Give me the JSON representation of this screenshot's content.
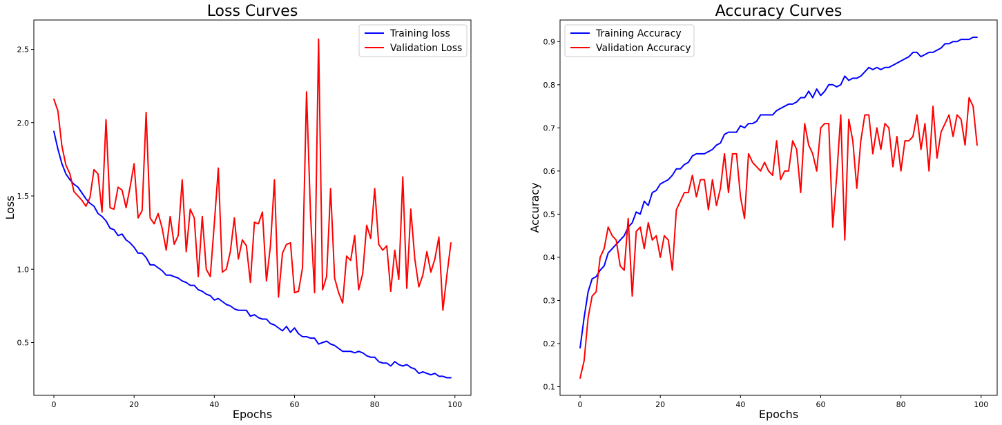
{
  "chart_data": [
    {
      "type": "line",
      "title": "Loss Curves",
      "xlabel": "Epochs",
      "ylabel": "Loss",
      "xlim": [
        -5,
        104
      ],
      "ylim": [
        0.14,
        2.7
      ],
      "xticks": [
        0,
        20,
        40,
        60,
        80,
        100
      ],
      "xtick_labels": [
        "0",
        "20",
        "40",
        "60",
        "80",
        "100"
      ],
      "yticks": [
        0.5,
        1.0,
        1.5,
        2.0,
        2.5
      ],
      "ytick_labels": [
        "0.5",
        "1.0",
        "1.5",
        "2.0",
        "2.5"
      ],
      "grid": false,
      "legend_position": "top-right",
      "series": [
        {
          "name": "Training loss",
          "color": "#0000ff",
          "values": [
            1.94,
            1.82,
            1.72,
            1.65,
            1.61,
            1.58,
            1.56,
            1.52,
            1.48,
            1.45,
            1.43,
            1.38,
            1.36,
            1.33,
            1.28,
            1.27,
            1.23,
            1.24,
            1.2,
            1.18,
            1.15,
            1.11,
            1.11,
            1.08,
            1.03,
            1.03,
            1.01,
            0.99,
            0.96,
            0.96,
            0.95,
            0.94,
            0.92,
            0.91,
            0.89,
            0.89,
            0.86,
            0.85,
            0.83,
            0.82,
            0.79,
            0.8,
            0.78,
            0.76,
            0.75,
            0.73,
            0.72,
            0.72,
            0.72,
            0.68,
            0.69,
            0.67,
            0.66,
            0.66,
            0.63,
            0.62,
            0.6,
            0.58,
            0.61,
            0.57,
            0.6,
            0.56,
            0.54,
            0.54,
            0.53,
            0.53,
            0.49,
            0.5,
            0.51,
            0.49,
            0.48,
            0.46,
            0.44,
            0.44,
            0.44,
            0.43,
            0.44,
            0.43,
            0.41,
            0.4,
            0.4,
            0.37,
            0.36,
            0.36,
            0.34,
            0.37,
            0.35,
            0.34,
            0.35,
            0.33,
            0.32,
            0.29,
            0.3,
            0.29,
            0.28,
            0.29,
            0.27,
            0.27,
            0.26,
            0.26
          ]
        },
        {
          "name": "Validation Loss",
          "color": "#ff0000",
          "values": [
            2.16,
            2.08,
            1.84,
            1.71,
            1.65,
            1.53,
            1.5,
            1.47,
            1.43,
            1.49,
            1.68,
            1.65,
            1.39,
            2.02,
            1.42,
            1.41,
            1.56,
            1.54,
            1.42,
            1.56,
            1.72,
            1.35,
            1.4,
            2.07,
            1.35,
            1.31,
            1.38,
            1.28,
            1.13,
            1.36,
            1.17,
            1.23,
            1.61,
            1.12,
            1.41,
            1.35,
            0.95,
            1.36,
            1.0,
            0.95,
            1.31,
            1.69,
            0.98,
            1.0,
            1.12,
            1.35,
            1.07,
            1.2,
            1.16,
            0.91,
            1.32,
            1.31,
            1.39,
            0.92,
            1.16,
            1.61,
            0.81,
            1.11,
            1.17,
            1.18,
            0.84,
            0.85,
            1.01,
            2.21,
            1.37,
            0.84,
            2.57,
            0.86,
            0.95,
            1.55,
            0.94,
            0.84,
            0.77,
            1.09,
            1.06,
            1.23,
            0.86,
            0.97,
            1.3,
            1.21,
            1.55,
            1.17,
            1.13,
            1.16,
            0.85,
            1.13,
            0.93,
            1.63,
            0.87,
            1.41,
            1.07,
            0.88,
            0.96,
            1.12,
            0.98,
            1.07,
            1.22,
            0.72,
            0.96,
            1.18
          ]
        }
      ]
    },
    {
      "type": "line",
      "title": "Accuracy Curves",
      "xlabel": "Epochs",
      "ylabel": "Accuracy",
      "xlim": [
        -5,
        104
      ],
      "ylim": [
        0.08,
        0.95
      ],
      "xticks": [
        0,
        20,
        40,
        60,
        80,
        100
      ],
      "xtick_labels": [
        "0",
        "20",
        "40",
        "60",
        "80",
        "100"
      ],
      "yticks": [
        0.1,
        0.2,
        0.3,
        0.4,
        0.5,
        0.6,
        0.7,
        0.8,
        0.9
      ],
      "ytick_labels": [
        "0.1",
        "0.2",
        "0.3",
        "0.4",
        "0.5",
        "0.6",
        "0.7",
        "0.8",
        "0.9"
      ],
      "grid": false,
      "legend_position": "top-left",
      "series": [
        {
          "name": "Training Accuracy",
          "color": "#0000ff",
          "values": [
            0.19,
            0.26,
            0.32,
            0.35,
            0.355,
            0.37,
            0.38,
            0.41,
            0.42,
            0.43,
            0.44,
            0.45,
            0.47,
            0.48,
            0.505,
            0.5,
            0.53,
            0.52,
            0.55,
            0.555,
            0.57,
            0.575,
            0.58,
            0.59,
            0.605,
            0.605,
            0.615,
            0.62,
            0.635,
            0.64,
            0.64,
            0.64,
            0.645,
            0.65,
            0.66,
            0.665,
            0.685,
            0.69,
            0.69,
            0.69,
            0.705,
            0.7,
            0.71,
            0.71,
            0.715,
            0.73,
            0.73,
            0.73,
            0.73,
            0.74,
            0.745,
            0.75,
            0.755,
            0.755,
            0.76,
            0.77,
            0.77,
            0.785,
            0.77,
            0.79,
            0.775,
            0.785,
            0.8,
            0.8,
            0.795,
            0.8,
            0.82,
            0.81,
            0.815,
            0.815,
            0.82,
            0.83,
            0.84,
            0.835,
            0.84,
            0.835,
            0.84,
            0.84,
            0.845,
            0.85,
            0.855,
            0.86,
            0.865,
            0.875,
            0.875,
            0.865,
            0.87,
            0.875,
            0.875,
            0.88,
            0.885,
            0.895,
            0.895,
            0.9,
            0.9,
            0.905,
            0.905,
            0.905,
            0.91,
            0.91
          ]
        },
        {
          "name": "Validation Accuracy",
          "color": "#ff0000",
          "values": [
            0.12,
            0.16,
            0.26,
            0.31,
            0.32,
            0.4,
            0.42,
            0.47,
            0.45,
            0.44,
            0.38,
            0.37,
            0.49,
            0.31,
            0.46,
            0.47,
            0.42,
            0.48,
            0.44,
            0.45,
            0.4,
            0.45,
            0.44,
            0.37,
            0.51,
            0.53,
            0.55,
            0.55,
            0.59,
            0.54,
            0.58,
            0.58,
            0.51,
            0.58,
            0.52,
            0.56,
            0.64,
            0.55,
            0.64,
            0.64,
            0.54,
            0.49,
            0.64,
            0.62,
            0.61,
            0.6,
            0.62,
            0.6,
            0.59,
            0.67,
            0.58,
            0.6,
            0.6,
            0.67,
            0.65,
            0.55,
            0.71,
            0.66,
            0.64,
            0.6,
            0.7,
            0.71,
            0.71,
            0.47,
            0.59,
            0.73,
            0.44,
            0.72,
            0.67,
            0.56,
            0.67,
            0.73,
            0.73,
            0.64,
            0.7,
            0.65,
            0.71,
            0.7,
            0.61,
            0.68,
            0.6,
            0.67,
            0.67,
            0.68,
            0.73,
            0.65,
            0.71,
            0.6,
            0.75,
            0.63,
            0.69,
            0.71,
            0.73,
            0.68,
            0.73,
            0.72,
            0.66,
            0.77,
            0.75,
            0.66
          ]
        }
      ]
    }
  ]
}
